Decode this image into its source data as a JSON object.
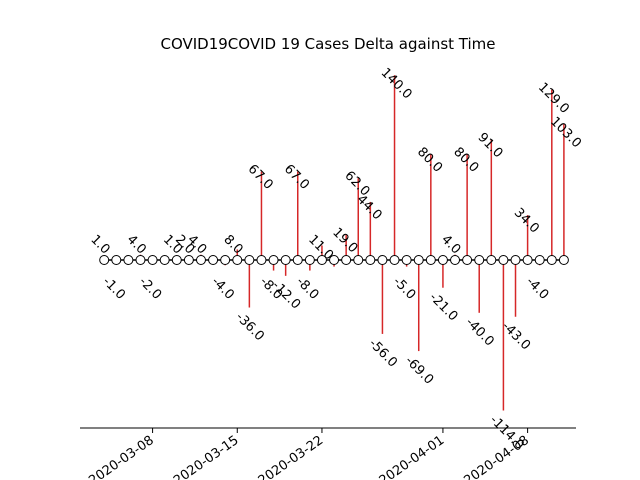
{
  "chart_data": {
    "type": "stem",
    "title": "COVID19COVID 19 Cases Delta against Time",
    "xlabel": "",
    "ylabel": "",
    "x_axis": "date",
    "xlim": [
      "2020-03-02",
      "2020-04-12"
    ],
    "xticks": [
      "2020-03-08",
      "2020-03-15",
      "2020-03-22",
      "2020-04-01",
      "2020-04-08"
    ],
    "grid": false,
    "stem_color": "#d62728",
    "points": [
      {
        "date": "2020-03-04",
        "value": 1,
        "label": "1.0"
      },
      {
        "date": "2020-03-05",
        "value": -1,
        "label": "-1.0"
      },
      {
        "date": "2020-03-06",
        "value": 0,
        "label": ""
      },
      {
        "date": "2020-03-07",
        "value": 4,
        "label": "4.0"
      },
      {
        "date": "2020-03-08",
        "value": -2,
        "label": "-2.0"
      },
      {
        "date": "2020-03-09",
        "value": 0,
        "label": ""
      },
      {
        "date": "2020-03-10",
        "value": 1,
        "label": "1.0"
      },
      {
        "date": "2020-03-11",
        "value": 2,
        "label": "2.0"
      },
      {
        "date": "2020-03-12",
        "value": 4,
        "label": "4.0"
      },
      {
        "date": "2020-03-13",
        "value": 0,
        "label": ""
      },
      {
        "date": "2020-03-14",
        "value": -4,
        "label": "-4.0"
      },
      {
        "date": "2020-03-15",
        "value": 8,
        "label": "8.0"
      },
      {
        "date": "2020-03-16",
        "value": -36,
        "label": "-36.0"
      },
      {
        "date": "2020-03-17",
        "value": 67,
        "label": "67.0"
      },
      {
        "date": "2020-03-18",
        "value": -8,
        "label": "-8.0"
      },
      {
        "date": "2020-03-19",
        "value": -12,
        "label": "-12.0"
      },
      {
        "date": "2020-03-20",
        "value": 67,
        "label": "67.0"
      },
      {
        "date": "2020-03-21",
        "value": -8,
        "label": "-8.0"
      },
      {
        "date": "2020-03-22",
        "value": 11,
        "label": "11.0"
      },
      {
        "date": "2020-03-23",
        "value": -5,
        "label": ""
      },
      {
        "date": "2020-03-24",
        "value": 19,
        "label": "19.0"
      },
      {
        "date": "2020-03-25",
        "value": 62,
        "label": "62.0"
      },
      {
        "date": "2020-03-26",
        "value": 44,
        "label": "44.0"
      },
      {
        "date": "2020-03-27",
        "value": -56,
        "label": "-56.0"
      },
      {
        "date": "2020-03-28",
        "value": 140,
        "label": "140.0"
      },
      {
        "date": "2020-03-29",
        "value": -5,
        "label": "-5.0"
      },
      {
        "date": "2020-03-30",
        "value": -69,
        "label": "-69.0"
      },
      {
        "date": "2020-03-31",
        "value": 80,
        "label": "80.0"
      },
      {
        "date": "2020-04-01",
        "value": -21,
        "label": "-21.0"
      },
      {
        "date": "2020-04-02",
        "value": 4,
        "label": "4.0"
      },
      {
        "date": "2020-04-03",
        "value": 80,
        "label": "80.0"
      },
      {
        "date": "2020-04-04",
        "value": -40,
        "label": "-40.0"
      },
      {
        "date": "2020-04-05",
        "value": 91,
        "label": "91.0"
      },
      {
        "date": "2020-04-06",
        "value": -114,
        "label": "-114.0"
      },
      {
        "date": "2020-04-07",
        "value": -43,
        "label": "-43.0"
      },
      {
        "date": "2020-04-08",
        "value": 34,
        "label": "34.0"
      },
      {
        "date": "2020-04-09",
        "value": -4,
        "label": "-4.0"
      },
      {
        "date": "2020-04-10",
        "value": 129,
        "label": "129.0"
      },
      {
        "date": "2020-04-11",
        "value": 103,
        "label": "103.0"
      }
    ]
  }
}
